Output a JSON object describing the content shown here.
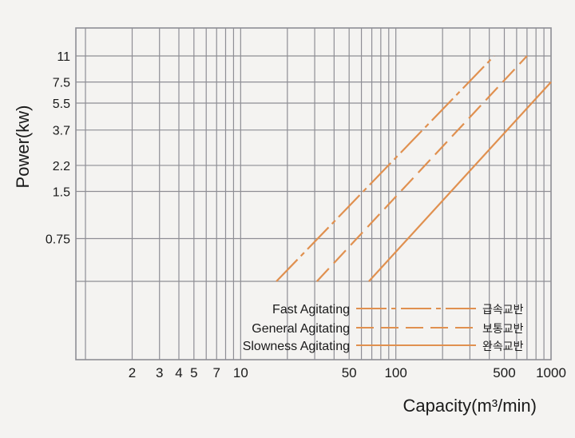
{
  "chart_data": {
    "type": "line",
    "xlabel": "Capacity(m³/min)",
    "ylabel": "Power(kw)",
    "x_scale": "log",
    "y_scale": "log",
    "xlim": [
      1,
      1000
    ],
    "ylim": [
      0.4,
      11
    ],
    "x_ticks": [
      {
        "value": 2,
        "label": "2"
      },
      {
        "value": 3,
        "label": "3"
      },
      {
        "value": 4,
        "label": "4"
      },
      {
        "value": 5,
        "label": "5"
      },
      {
        "value": 7,
        "label": "7"
      },
      {
        "value": 10,
        "label": "10"
      },
      {
        "value": 50,
        "label": "50"
      },
      {
        "value": 100,
        "label": "100"
      },
      {
        "value": 500,
        "label": "500"
      },
      {
        "value": 1000,
        "label": "1000"
      }
    ],
    "y_ticks": [
      {
        "value": 0.75,
        "label": "0.75"
      },
      {
        "value": 1.5,
        "label": "1.5"
      },
      {
        "value": 2.2,
        "label": "2.2"
      },
      {
        "value": 3.7,
        "label": "3.7"
      },
      {
        "value": 5.5,
        "label": "5.5"
      },
      {
        "value": 7.5,
        "label": "7.5"
      },
      {
        "value": 11,
        "label": "11"
      }
    ],
    "grid": true,
    "legend_position": "bottom-right",
    "series": [
      {
        "name": "Fast Agitating",
        "name_kr": "급속교반",
        "style": "dashdot",
        "x": [
          17,
          430
        ],
        "y": [
          0.4,
          11
        ]
      },
      {
        "name": "General Agitating",
        "name_kr": "보통교반",
        "style": "dashed",
        "x": [
          31,
          700
        ],
        "y": [
          0.4,
          11
        ]
      },
      {
        "name": "Slowness Agitating",
        "name_kr": "완속교반",
        "style": "solid",
        "x": [
          67,
          1000
        ],
        "y": [
          0.4,
          7.5
        ]
      }
    ]
  },
  "colors": {
    "background": "#f4f3f1",
    "grid": "#8e8e95",
    "series": "#e0904f",
    "text": "#1a1a1a"
  }
}
